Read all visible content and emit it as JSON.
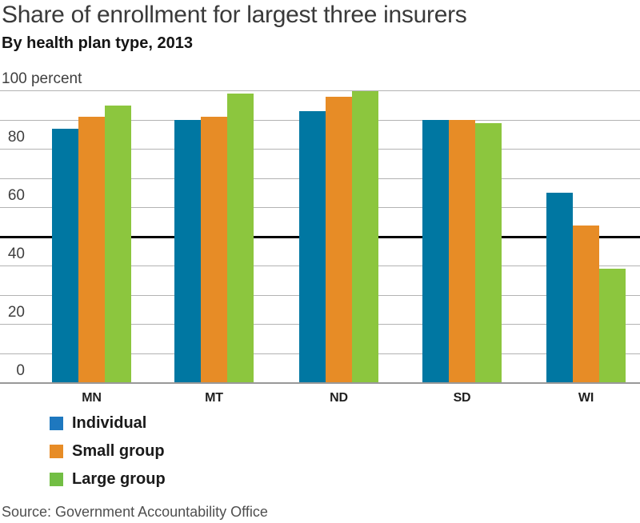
{
  "header": {
    "title": "Share of enrollment for largest three insurers",
    "subtitle": "By health plan type, 2013"
  },
  "footer": {
    "source": "Source: Government Accountability Office"
  },
  "colors": {
    "bar_individual": "#0077A2",
    "bar_small_group": "#E78C26",
    "bar_large_group": "#8CC63E",
    "legend_individual": "#1E78BF",
    "legend_small_group": "#E78C26",
    "legend_large_group": "#72BE44",
    "gridline": "#B3B3B3",
    "reference_line": "#000000",
    "baseline": "#999999"
  },
  "chart_data": {
    "type": "bar",
    "title": "Share of enrollment for largest three insurers",
    "subtitle": "By health plan type, 2013",
    "unit": "percent",
    "categories": [
      "MN",
      "MT",
      "ND",
      "SD",
      "WI"
    ],
    "series": [
      {
        "name": "Individual",
        "color": "#0077A2",
        "legend_color": "#1E78BF",
        "values": [
          87,
          90,
          93,
          90,
          65
        ]
      },
      {
        "name": "Small group",
        "color": "#E78C26",
        "legend_color": "#E78C26",
        "values": [
          91,
          91,
          98,
          90,
          54
        ]
      },
      {
        "name": "Large group",
        "color": "#8CC63E",
        "legend_color": "#72BE44",
        "values": [
          95,
          99,
          100,
          89,
          39
        ]
      }
    ],
    "ylim": [
      0,
      100
    ],
    "gridline_step": 10,
    "top_axis_label": "100 percent",
    "ytick_labels": [
      {
        "value": 80,
        "label": "80"
      },
      {
        "value": 60,
        "label": "60"
      },
      {
        "value": 40,
        "label": "40"
      },
      {
        "value": 20,
        "label": "20"
      },
      {
        "value": 0,
        "label": "0"
      }
    ],
    "reference_line_value": 50,
    "grid": true,
    "legend_position": "bottom-left"
  }
}
